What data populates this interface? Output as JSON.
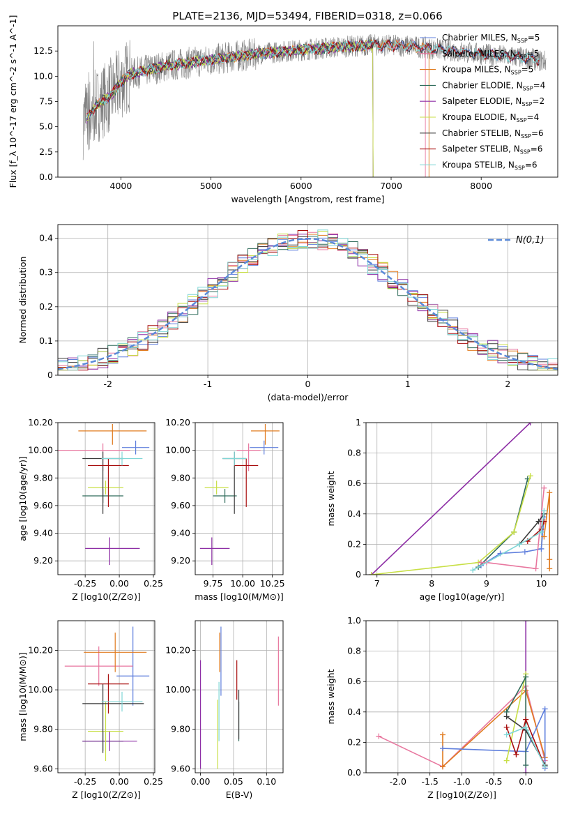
{
  "figure": {
    "title": "PLATE=2136, MJD=53494, FIBERID=0318, z=0.066"
  },
  "colors": {
    "Chabrier MILES": "#5f7fdd",
    "Salpeter MILES": "#e8779f",
    "Kroupa MILES": "#e07b1f",
    "Chabrier ELODIE": "#2e6b5a",
    "Salpeter ELODIE": "#8d2ea5",
    "Kroupa ELODIE": "#c8df46",
    "Chabrier STELIB": "#3a3a3a",
    "Salpeter STELIB": "#a80d0d",
    "Kroupa STELIB": "#7fd6d6",
    "data": "#808080",
    "gaussian": "#5b8ad8"
  },
  "chart_data": [
    {
      "id": "spectrum",
      "type": "line",
      "xlabel": "wavelength [Angstrom, rest frame]",
      "ylabel": "Flux [f_λ 10^-17 erg cm^-2 s^-1 A^-1]",
      "xlim": [
        3300,
        8850
      ],
      "ylim": [
        0,
        15
      ],
      "xticks": [
        4000,
        5000,
        6000,
        7000,
        8000
      ],
      "yticks": [
        0.0,
        2.5,
        5.0,
        7.5,
        10.0,
        12.5
      ],
      "grid": false,
      "legend_position": "right",
      "legend": [
        "Chabrier MILES, N_SSP=5",
        "Salpeter MILES, N_SSP=5",
        "Kroupa MILES, N_SSP=5",
        "Chabrier ELODIE, N_SSP=4",
        "Salpeter ELODIE, N_SSP=2",
        "Kroupa ELODIE, N_SSP=4",
        "Chabrier STELIB, N_SSP=6",
        "Salpeter STELIB, N_SSP=6",
        "Kroupa STELIB, N_SSP=6"
      ],
      "continuum": {
        "x": [
          3600,
          3700,
          3800,
          3900,
          4000,
          4100,
          4300,
          4500,
          4800,
          5000,
          5300,
          5600,
          6000,
          6400,
          6800,
          7200,
          7600,
          8000,
          8400,
          8700
        ],
        "y": [
          5.5,
          6.8,
          7.6,
          8.2,
          9.4,
          10.2,
          10.6,
          11.0,
          11.4,
          11.6,
          12.0,
          12.3,
          12.6,
          12.9,
          13.1,
          13.0,
          12.6,
          12.2,
          11.9,
          11.5
        ]
      },
      "models": [
        {
          "name": "Chabrier MILES",
          "x_end": 8650
        },
        {
          "name": "Salpeter MILES",
          "x_end": 7380
        },
        {
          "name": "Kroupa MILES",
          "x_end": 7420
        },
        {
          "name": "Chabrier ELODIE",
          "x_end": 6800
        },
        {
          "name": "Salpeter ELODIE",
          "x_end": 6800
        },
        {
          "name": "Kroupa ELODIE",
          "x_end": 6800
        },
        {
          "name": "Chabrier STELIB",
          "x_end": 8650
        },
        {
          "name": "Salpeter STELIB",
          "x_end": 8650
        },
        {
          "name": "Kroupa STELIB",
          "x_end": 8650
        }
      ]
    },
    {
      "id": "residuals",
      "type": "step",
      "xlabel": "(data-model)/error",
      "ylabel": "Normed distribution",
      "xlim": [
        -2.5,
        2.5
      ],
      "ylim": [
        0,
        0.44
      ],
      "xticks": [
        -2,
        -1,
        0,
        1,
        2
      ],
      "yticks": [
        0.0,
        0.1,
        0.2,
        0.3,
        0.4
      ],
      "grid": true,
      "legend": [
        "N(0,1)"
      ],
      "legend_position": "top-right",
      "bin_width": 0.1
    },
    {
      "id": "age_z",
      "type": "errorbar",
      "xlabel": "Z [log10(Z/Z⊙)]",
      "ylabel": "age [log10(age/yr)]",
      "xlim": [
        -0.45,
        0.26
      ],
      "ylim": [
        9.1,
        10.2
      ],
      "xticks": [
        -0.25,
        0.0,
        0.25
      ],
      "yticks": [
        9.2,
        9.4,
        9.6,
        9.8,
        10.0,
        10.2
      ],
      "grid": true,
      "points": [
        {
          "model": "Chabrier MILES",
          "x": 0.12,
          "xerr": [
            0.1,
            0.1
          ],
          "y": 10.02,
          "yerr": [
            0.05,
            0.05
          ]
        },
        {
          "model": "Salpeter MILES",
          "x": -0.12,
          "xerr": [
            0.4,
            0.2
          ],
          "y": 10.0,
          "yerr": [
            0.15,
            0.05
          ]
        },
        {
          "model": "Kroupa MILES",
          "x": -0.05,
          "xerr": [
            0.25,
            0.25
          ],
          "y": 10.14,
          "yerr": [
            0.1,
            0.05
          ]
        },
        {
          "model": "Chabrier ELODIE",
          "x": -0.12,
          "xerr": [
            0.15,
            0.15
          ],
          "y": 9.67,
          "yerr": [
            0.05,
            0.05
          ]
        },
        {
          "model": "Salpeter ELODIE",
          "x": -0.07,
          "xerr": [
            0.18,
            0.22
          ],
          "y": 9.29,
          "yerr": [
            0.12,
            0.08
          ]
        },
        {
          "model": "Kroupa ELODIE",
          "x": -0.1,
          "xerr": [
            0.13,
            0.13
          ],
          "y": 9.73,
          "yerr": [
            0.05,
            0.05
          ]
        },
        {
          "model": "Chabrier STELIB",
          "x": -0.12,
          "xerr": [
            0.15,
            0.15
          ],
          "y": 9.94,
          "yerr": [
            0.4,
            0.05
          ]
        },
        {
          "model": "Salpeter STELIB",
          "x": -0.08,
          "xerr": [
            0.15,
            0.15
          ],
          "y": 9.89,
          "yerr": [
            0.3,
            0.05
          ]
        },
        {
          "model": "Kroupa STELIB",
          "x": 0.02,
          "xerr": [
            0.15,
            0.15
          ],
          "y": 9.94,
          "yerr": [
            0.05,
            0.05
          ]
        }
      ]
    },
    {
      "id": "age_mass",
      "type": "errorbar",
      "xlabel": "mass [log10(M/M⊙)]",
      "ylabel": "",
      "xlim": [
        9.6,
        10.34
      ],
      "ylim": [
        9.1,
        10.2
      ],
      "xticks": [
        9.75,
        10.0,
        10.25
      ],
      "yticks": [
        9.2,
        9.4,
        9.6,
        9.8,
        10.0,
        10.2
      ],
      "grid": true,
      "points": [
        {
          "model": "Chabrier MILES",
          "x": 10.18,
          "xerr": [
            0.12,
            0.12
          ],
          "y": 10.02,
          "yerr": [
            0.05,
            0.05
          ]
        },
        {
          "model": "Salpeter MILES",
          "x": 10.05,
          "xerr": [
            0.1,
            0.1
          ],
          "y": 10.0,
          "yerr": [
            0.15,
            0.05
          ]
        },
        {
          "model": "Kroupa MILES",
          "x": 10.19,
          "xerr": [
            0.12,
            0.12
          ],
          "y": 10.14,
          "yerr": [
            0.1,
            0.05
          ]
        },
        {
          "model": "Chabrier ELODIE",
          "x": 9.85,
          "xerr": [
            0.1,
            0.1
          ],
          "y": 9.67,
          "yerr": [
            0.05,
            0.05
          ]
        },
        {
          "model": "Salpeter ELODIE",
          "x": 9.74,
          "xerr": [
            0.1,
            0.15
          ],
          "y": 9.29,
          "yerr": [
            0.12,
            0.08
          ]
        },
        {
          "model": "Kroupa ELODIE",
          "x": 9.78,
          "xerr": [
            0.1,
            0.1
          ],
          "y": 9.73,
          "yerr": [
            0.05,
            0.05
          ]
        },
        {
          "model": "Chabrier STELIB",
          "x": 9.93,
          "xerr": [
            0.1,
            0.1
          ],
          "y": 9.94,
          "yerr": [
            0.4,
            0.05
          ]
        },
        {
          "model": "Salpeter STELIB",
          "x": 10.03,
          "xerr": [
            0.1,
            0.1
          ],
          "y": 9.89,
          "yerr": [
            0.3,
            0.05
          ]
        },
        {
          "model": "Kroupa STELIB",
          "x": 9.93,
          "xerr": [
            0.1,
            0.1
          ],
          "y": 9.94,
          "yerr": [
            0.05,
            0.05
          ]
        }
      ]
    },
    {
      "id": "weight_age",
      "type": "line",
      "xlabel": "age [log10(age/yr)]",
      "ylabel": "mass weight",
      "xlim": [
        6.8,
        10.3
      ],
      "ylim": [
        0,
        1.0
      ],
      "xticks": [
        7,
        8,
        9,
        10
      ],
      "yticks": [
        0.0,
        0.2,
        0.4,
        0.6,
        0.8,
        1.0
      ],
      "grid": true,
      "series": [
        {
          "model": "Salpeter ELODIE",
          "x": [
            6.9,
            9.8
          ],
          "y": [
            0.0,
            1.0
          ]
        },
        {
          "model": "Chabrier ELODIE",
          "x": [
            8.85,
            9.5,
            9.75
          ],
          "y": [
            0.05,
            0.28,
            0.63
          ]
        },
        {
          "model": "Kroupa ELODIE",
          "x": [
            6.9,
            8.85,
            9.5,
            9.8
          ],
          "y": [
            0.0,
            0.08,
            0.28,
            0.65
          ]
        },
        {
          "model": "Chabrier MILES",
          "x": [
            8.9,
            9.25,
            9.7,
            10.0,
            10.05
          ],
          "y": [
            0.06,
            0.14,
            0.15,
            0.17,
            0.38
          ]
        },
        {
          "model": "Salpeter MILES",
          "x": [
            8.9,
            9.0,
            9.9,
            10.05
          ],
          "y": [
            0.08,
            0.08,
            0.04,
            0.57
          ]
        },
        {
          "model": "Kroupa MILES",
          "x": [
            10.05,
            10.15,
            10.15,
            10.15
          ],
          "y": [
            0.25,
            0.54,
            0.1,
            0.04
          ]
        },
        {
          "model": "Chabrier STELIB",
          "x": [
            9.6,
            9.95,
            10.05
          ],
          "y": [
            0.2,
            0.35,
            0.4
          ]
        },
        {
          "model": "Salpeter STELIB",
          "x": [
            9.75,
            10.0,
            10.05
          ],
          "y": [
            0.22,
            0.3,
            0.35
          ]
        },
        {
          "model": "Kroupa STELIB",
          "x": [
            8.75,
            9.6,
            10.0,
            10.05
          ],
          "y": [
            0.03,
            0.2,
            0.28,
            0.42
          ]
        }
      ]
    },
    {
      "id": "mass_z",
      "type": "errorbar",
      "xlabel": "Z [log10(Z/Z⊙)]",
      "ylabel": "mass [log10(M/M⊙)]",
      "xlim": [
        -0.45,
        0.26
      ],
      "ylim": [
        9.58,
        10.35
      ],
      "xticks": [
        -0.25,
        0.0,
        0.25
      ],
      "yticks": [
        9.6,
        9.8,
        10.0,
        10.2
      ],
      "grid": true,
      "points": [
        {
          "model": "Chabrier MILES",
          "x": 0.1,
          "xerr": [
            0.12,
            0.12
          ],
          "y": 10.07,
          "yerr": [
            0.15,
            0.25
          ]
        },
        {
          "model": "Salpeter MILES",
          "x": -0.15,
          "xerr": [
            0.25,
            0.25
          ],
          "y": 10.12,
          "yerr": [
            0.1,
            0.1
          ]
        },
        {
          "model": "Kroupa MILES",
          "x": -0.03,
          "xerr": [
            0.23,
            0.23
          ],
          "y": 10.19,
          "yerr": [
            0.1,
            0.1
          ]
        },
        {
          "model": "Chabrier ELODIE",
          "x": -0.12,
          "xerr": [
            0.15,
            0.15
          ],
          "y": 9.74,
          "yerr": [
            0.05,
            0.05
          ]
        },
        {
          "model": "Salpeter ELODIE",
          "x": -0.07,
          "xerr": [
            0.2,
            0.2
          ],
          "y": 9.74,
          "yerr": [
            0.05,
            0.05
          ]
        },
        {
          "model": "Kroupa ELODIE",
          "x": -0.1,
          "xerr": [
            0.13,
            0.13
          ],
          "y": 9.79,
          "yerr": [
            0.15,
            0.15
          ]
        },
        {
          "model": "Chabrier STELIB",
          "x": -0.12,
          "xerr": [
            0.15,
            0.3
          ],
          "y": 9.93,
          "yerr": [
            0.25,
            0.1
          ]
        },
        {
          "model": "Salpeter STELIB",
          "x": -0.08,
          "xerr": [
            0.15,
            0.15
          ],
          "y": 10.03,
          "yerr": [
            0.15,
            0.05
          ]
        },
        {
          "model": "Kroupa STELIB",
          "x": 0.02,
          "xerr": [
            0.15,
            0.15
          ],
          "y": 9.94,
          "yerr": [
            0.05,
            0.05
          ]
        }
      ]
    },
    {
      "id": "mass_ebv",
      "type": "errorbar",
      "xlabel": "E(B-V)",
      "ylabel": "",
      "xlim": [
        -0.008,
        0.125
      ],
      "ylim": [
        9.58,
        10.35
      ],
      "xticks": [
        0.0,
        0.05,
        0.1
      ],
      "yticks": [
        9.6,
        9.8,
        10.0,
        10.2
      ],
      "grid": true,
      "points": [
        {
          "model": "Chabrier MILES",
          "x": 0.031,
          "yerr": [
            0.1,
            0.25
          ],
          "y": 10.07
        },
        {
          "model": "Salpeter MILES",
          "x": 0.118,
          "yerr": [
            0.2,
            0.15
          ],
          "y": 10.12
        },
        {
          "model": "Kroupa MILES",
          "x": 0.029,
          "yerr": [
            0.1,
            0.1
          ],
          "y": 10.19
        },
        {
          "model": "Chabrier ELODIE",
          "x": 0.058,
          "yerr": [
            0.1,
            0.1
          ],
          "y": 9.84
        },
        {
          "model": "Salpeter ELODIE",
          "x": 0.0,
          "yerr": [
            0.15,
            0.4
          ],
          "y": 9.75
        },
        {
          "model": "Kroupa ELODIE",
          "x": 0.026,
          "yerr": [
            0.2,
            0.15
          ],
          "y": 9.8
        },
        {
          "model": "Chabrier STELIB",
          "x": 0.058,
          "yerr": [
            0.2,
            0.05
          ],
          "y": 9.95
        },
        {
          "model": "Salpeter STELIB",
          "x": 0.055,
          "yerr": [
            0.1,
            0.1
          ],
          "y": 10.05
        },
        {
          "model": "Kroupa STELIB",
          "x": 0.028,
          "yerr": [
            0.2,
            0.1
          ],
          "y": 9.94
        }
      ]
    },
    {
      "id": "weight_z",
      "type": "line",
      "xlabel": "Z [log10(Z/Z⊙)]",
      "ylabel": "mass weight",
      "xlim": [
        -2.5,
        0.5
      ],
      "ylim": [
        0,
        1.0
      ],
      "xticks": [
        -2.0,
        -1.5,
        -1.0,
        -0.5,
        0.0
      ],
      "yticks": [
        0.0,
        0.2,
        0.4,
        0.6,
        0.8,
        1.0
      ],
      "grid": true,
      "series": [
        {
          "model": "Salpeter MILES",
          "x": [
            -2.3,
            -1.3,
            0.0,
            0.3
          ],
          "y": [
            0.24,
            0.04,
            0.57,
            0.08
          ]
        },
        {
          "model": "Kroupa MILES",
          "x": [
            -1.3,
            -1.3,
            0.0,
            0.3
          ],
          "y": [
            0.25,
            0.04,
            0.54,
            0.1
          ]
        },
        {
          "model": "Chabrier MILES",
          "x": [
            -1.3,
            0.0,
            0.3,
            0.3
          ],
          "y": [
            0.16,
            0.14,
            0.42,
            0.03
          ]
        },
        {
          "model": "Salpeter ELODIE",
          "x": [
            0.0,
            0.0
          ],
          "y": [
            1.0,
            0.0
          ]
        },
        {
          "model": "Kroupa ELODIE",
          "x": [
            -0.3,
            0.0,
            0.0
          ],
          "y": [
            0.08,
            0.65,
            0.3
          ]
        },
        {
          "model": "Chabrier ELODIE",
          "x": [
            -0.3,
            0.0,
            0.0
          ],
          "y": [
            0.4,
            0.63,
            0.05
          ]
        },
        {
          "model": "Chabrier STELIB",
          "x": [
            -0.3,
            0.0,
            0.3
          ],
          "y": [
            0.37,
            0.28,
            0.05
          ]
        },
        {
          "model": "Salpeter STELIB",
          "x": [
            -0.3,
            -0.15,
            0.0,
            0.3
          ],
          "y": [
            0.3,
            0.12,
            0.35,
            0.04
          ]
        },
        {
          "model": "Kroupa STELIB",
          "x": [
            -0.3,
            0.0,
            0.3
          ],
          "y": [
            0.25,
            0.3,
            0.04
          ]
        }
      ]
    }
  ]
}
